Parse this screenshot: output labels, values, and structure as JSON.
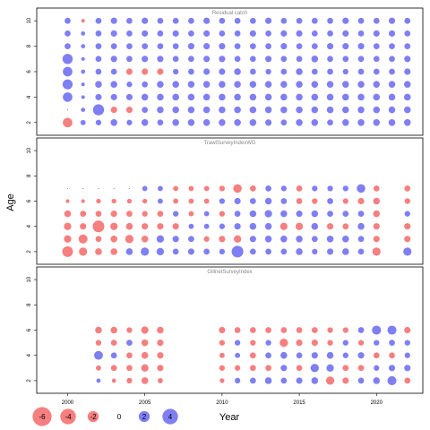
{
  "chart_data": {
    "type": "scatter",
    "style": "bubble",
    "xlabel": "Year",
    "ylabel": "Age",
    "xticks": [
      2000,
      2005,
      2010,
      2015,
      2020
    ],
    "yticks": [
      2,
      4,
      6,
      8,
      10
    ],
    "xlim": [
      1998,
      2023
    ],
    "ylim": [
      1,
      11
    ],
    "colors": {
      "negative": "#f45b5b",
      "positive": "#5b5bf0"
    },
    "legend": {
      "placement": "bottom-left",
      "values": [
        -6,
        -4,
        -2,
        0,
        2,
        4
      ],
      "labels": [
        "-6",
        "-4",
        "-2",
        "0",
        "2",
        "4"
      ]
    },
    "panels": [
      {
        "title": "Residual catch",
        "years": [
          2000,
          2001,
          2002,
          2003,
          2004,
          2005,
          2006,
          2007,
          2008,
          2009,
          2010,
          2011,
          2012,
          2013,
          2014,
          2015,
          2016,
          2017,
          2018,
          2019,
          2020,
          2021,
          2022
        ],
        "ages": [
          2,
          3,
          4,
          5,
          6,
          7,
          8,
          9,
          10
        ],
        "values": [
          [
            -2.0,
            0.0,
            2.0,
            2.2,
            2.0,
            2.3,
            0.8,
            0.8,
            0.8
          ],
          [
            0.6,
            0.4,
            0.3,
            0.3,
            0.4,
            0.3,
            0.4,
            0.4,
            -0.3
          ],
          [
            0.7,
            2.7,
            0.9,
            1.0,
            0.8,
            0.8,
            0.8,
            0.8,
            0.8
          ],
          [
            1.0,
            -0.9,
            0.9,
            1.0,
            0.8,
            0.9,
            0.8,
            0.9,
            0.9
          ],
          [
            0.7,
            -0.9,
            0.9,
            0.7,
            -0.9,
            0.8,
            0.8,
            0.8,
            0.8
          ],
          [
            1.0,
            0.8,
            1.0,
            0.8,
            -0.9,
            0.9,
            0.8,
            0.9,
            0.9
          ],
          [
            0.8,
            1.0,
            1.0,
            1.0,
            -0.9,
            0.9,
            0.8,
            0.8,
            0.8
          ],
          [
            1.0,
            1.0,
            1.0,
            1.0,
            0.7,
            0.8,
            0.8,
            0.9,
            0.8
          ],
          [
            1.0,
            1.0,
            1.0,
            1.0,
            0.8,
            0.8,
            0.9,
            0.8,
            0.8
          ],
          [
            1.0,
            1.0,
            1.0,
            1.0,
            0.9,
            0.9,
            0.9,
            0.9,
            0.9
          ],
          [
            1.0,
            1.0,
            1.0,
            1.0,
            0.9,
            0.9,
            0.9,
            0.8,
            0.8
          ],
          [
            1.0,
            1.0,
            1.0,
            1.0,
            1.0,
            0.8,
            0.8,
            0.8,
            0.8
          ],
          [
            1.0,
            1.0,
            1.0,
            1.0,
            0.8,
            0.8,
            0.8,
            0.9,
            0.8
          ],
          [
            0.9,
            1.0,
            1.0,
            1.0,
            0.7,
            0.9,
            0.8,
            0.8,
            0.9
          ],
          [
            0.8,
            1.0,
            1.0,
            1.0,
            0.8,
            0.8,
            0.9,
            0.9,
            0.8
          ],
          [
            1.0,
            1.0,
            1.0,
            1.0,
            1.0,
            0.8,
            0.8,
            0.9,
            0.8
          ],
          [
            1.0,
            1.0,
            1.0,
            1.0,
            0.8,
            1.0,
            0.8,
            0.8,
            0.8
          ],
          [
            0.8,
            1.0,
            1.0,
            1.0,
            0.8,
            0.8,
            0.9,
            0.8,
            0.8
          ],
          [
            1.0,
            1.0,
            1.0,
            1.0,
            0.7,
            0.8,
            0.9,
            0.9,
            0.9
          ],
          [
            1.0,
            1.0,
            1.0,
            1.0,
            0.8,
            0.8,
            0.9,
            0.8,
            0.8
          ],
          [
            1.0,
            1.0,
            1.0,
            1.0,
            0.8,
            0.8,
            0.8,
            0.9,
            0.8
          ],
          [
            1.0,
            1.0,
            1.0,
            1.0,
            0.8,
            0.8,
            0.8,
            0.9,
            0.9
          ],
          [
            1.0,
            1.0,
            1.0,
            1.0,
            0.9,
            0.9,
            0.8,
            0.8,
            0.8
          ]
        ]
      },
      {
        "title": "TrawlSurveyIndexWG",
        "years": [
          2000,
          2001,
          2002,
          2003,
          2004,
          2005,
          2006,
          2007,
          2008,
          2009,
          2010,
          2011,
          2012,
          2013,
          2014,
          2015,
          2016,
          2017,
          2018,
          2019,
          2020,
          2022
        ],
        "ages": [
          2,
          3,
          4,
          5,
          6,
          7
        ],
        "values": [
          [
            -2.5,
            -1.2,
            -1.2,
            -1.0,
            -0.3,
            0.0
          ],
          [
            -1.5,
            -1.8,
            -0.9,
            -0.8,
            -0.3,
            0.0
          ],
          [
            -1.0,
            -0.8,
            -3.0,
            -0.8,
            -0.5,
            0.0
          ],
          [
            -1.0,
            -1.0,
            -1.2,
            -0.9,
            -0.5,
            0.0
          ],
          [
            1.0,
            -1.5,
            -1.0,
            -0.8,
            -0.5,
            0.0
          ],
          [
            1.5,
            -1.0,
            -0.9,
            -0.7,
            -0.5,
            0.6
          ],
          [
            1.2,
            1.2,
            -0.9,
            -0.8,
            0.6,
            0.6
          ],
          [
            0.8,
            0.9,
            -0.9,
            0.7,
            -0.6,
            -0.6
          ],
          [
            0.9,
            0.8,
            0.6,
            -0.6,
            -0.6,
            -0.6
          ],
          [
            0.8,
            -0.7,
            0.6,
            0.6,
            -0.6,
            -0.6
          ],
          [
            0.7,
            -0.9,
            0.7,
            -0.7,
            0.7,
            -0.7
          ],
          [
            3.0,
            -1.2,
            0.9,
            0.8,
            0.9,
            -1.6
          ],
          [
            0.8,
            0.9,
            1.0,
            1.0,
            0.8,
            -0.8
          ],
          [
            0.8,
            1.0,
            1.0,
            1.2,
            1.0,
            0.8
          ],
          [
            0.8,
            1.0,
            -1.2,
            1.0,
            0.8,
            0.7
          ],
          [
            1.0,
            1.0,
            -1.2,
            0.9,
            -0.8,
            -0.8
          ],
          [
            0.7,
            0.8,
            1.0,
            1.0,
            -0.7,
            0.7
          ],
          [
            0.9,
            1.0,
            -0.9,
            0.8,
            0.8,
            0.7
          ],
          [
            1.0,
            1.0,
            -0.8,
            0.8,
            -0.7,
            0.7
          ],
          [
            0.8,
            0.8,
            1.0,
            0.8,
            -0.9,
            1.6
          ],
          [
            -1.5,
            -0.9,
            -0.9,
            -1.0,
            -1.0,
            -0.8
          ],
          [
            1.5,
            -0.9,
            -0.9,
            0.7,
            -0.7,
            -0.8
          ]
        ]
      },
      {
        "title": "GillnetSurveyIndex",
        "years": [
          2002,
          2003,
          2004,
          2005,
          2006,
          2010,
          2011,
          2012,
          2013,
          2014,
          2015,
          2016,
          2017,
          2018,
          2019,
          2020,
          2021,
          2022
        ],
        "ages": [
          2,
          3,
          4,
          5,
          6
        ],
        "values": [
          [
            0.4,
            -0.6,
            1.7,
            -0.7,
            -1.0
          ],
          [
            -0.4,
            -0.8,
            0.8,
            -0.8,
            -1.0
          ],
          [
            -0.7,
            -0.8,
            -0.8,
            0.8,
            -0.7
          ],
          [
            -1.0,
            -1.2,
            -1.0,
            -1.0,
            -1.2
          ],
          [
            -0.6,
            -0.9,
            -0.9,
            -0.9,
            -1.0
          ],
          [
            -0.5,
            -0.7,
            -0.6,
            -0.7,
            -0.9
          ],
          [
            0.7,
            -0.7,
            0.6,
            0.7,
            -0.8
          ],
          [
            0.8,
            -0.8,
            -0.8,
            -0.7,
            -0.8
          ],
          [
            1.0,
            -0.8,
            0.8,
            0.7,
            -0.8
          ],
          [
            0.8,
            0.9,
            1.0,
            -1.5,
            -0.8
          ],
          [
            0.9,
            -0.8,
            0.8,
            -0.9,
            -0.8
          ],
          [
            1.0,
            1.5,
            0.9,
            -0.9,
            -0.8
          ],
          [
            -1.5,
            1.2,
            1.0,
            -0.7,
            -0.7
          ],
          [
            -0.9,
            -0.8,
            0.7,
            0.7,
            -0.7
          ],
          [
            0.8,
            -0.8,
            0.9,
            -0.7,
            0.8
          ],
          [
            1.0,
            0.7,
            -0.8,
            0.7,
            1.8
          ],
          [
            1.8,
            0.9,
            -0.8,
            0.8,
            1.8
          ],
          [
            -0.8,
            0.9,
            0.7,
            0.7,
            -0.9
          ]
        ]
      }
    ]
  }
}
